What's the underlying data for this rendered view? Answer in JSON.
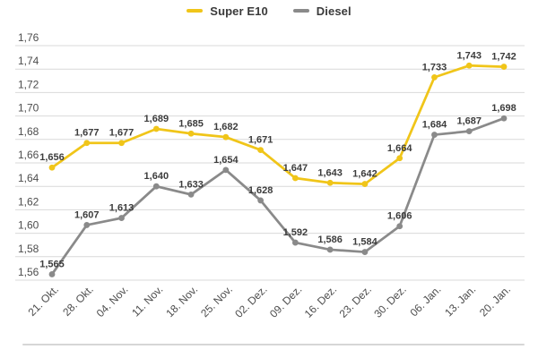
{
  "chart_data": {
    "type": "line",
    "title": "",
    "categories": [
      "21. Okt.",
      "28. Okt.",
      "04. Nov.",
      "11. Nov.",
      "18. Nov.",
      "25. Nov.",
      "02. Dez.",
      "09. Dez.",
      "16. Dez.",
      "23. Dez.",
      "30. Dez.",
      "06. Jan.",
      "13. Jan.",
      "20. Jan."
    ],
    "series": [
      {
        "name": "Super E10",
        "color": "#F0C519",
        "values": [
          1.656,
          1.677,
          1.677,
          1.689,
          1.685,
          1.682,
          1.671,
          1.647,
          1.643,
          1.642,
          1.664,
          1.733,
          1.743,
          1.742
        ],
        "point_labels": [
          "1,656",
          "1,677",
          "1,677",
          "1,689",
          "1,685",
          "1,682",
          "1,671",
          "1,647",
          "1,643",
          "1,642",
          "1,664",
          "1,733",
          "1,743",
          "1,742"
        ]
      },
      {
        "name": "Diesel",
        "color": "#8A8A8A",
        "values": [
          1.565,
          1.607,
          1.613,
          1.64,
          1.633,
          1.654,
          1.628,
          1.592,
          1.586,
          1.584,
          1.606,
          1.684,
          1.687,
          1.698
        ],
        "point_labels": [
          "1,565",
          "1,607",
          "1,613",
          "1,640",
          "1,633",
          "1,654",
          "1,628",
          "1,592",
          "1,586",
          "1,584",
          "1,606",
          "1,684",
          "1,687",
          "1,698"
        ]
      }
    ],
    "ylim": [
      1.56,
      1.76
    ],
    "ytick_step": 0.02,
    "ytick_labels": [
      "1,56",
      "1,58",
      "1,60",
      "1,62",
      "1,64",
      "1,66",
      "1,68",
      "1,70",
      "1,72",
      "1,74",
      "1,76"
    ],
    "decimal_separator": ",",
    "grid": true,
    "legend_position": "top",
    "xlabel": "",
    "ylabel": ""
  },
  "colors": {
    "background": "#FFFFFF",
    "gridline": "#D9D9D9",
    "axis_label": "#4D4D4D",
    "data_label": "#3C3C3C",
    "divider": "#D6D6D6",
    "super_e10": "#F0C519",
    "diesel": "#8A8A8A"
  }
}
